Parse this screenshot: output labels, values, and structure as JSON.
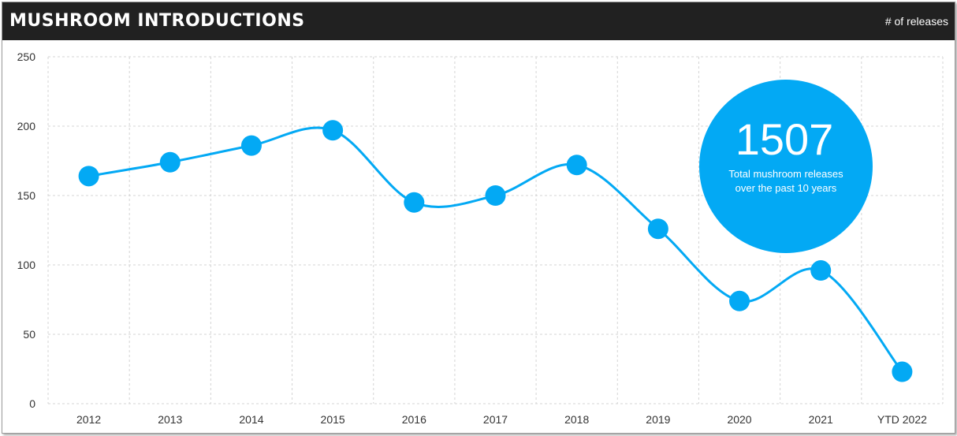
{
  "header": {
    "title": "MUSHROOM INTRODUCTIONS",
    "unit_label": "# of releases",
    "background": "#212121"
  },
  "callout": {
    "value": "1507",
    "caption_line1": "Total mushroom releases",
    "caption_line2": "over the past 10 years",
    "color": "#03A9F4"
  },
  "chart_data": {
    "type": "line",
    "title": "MUSHROOM INTRODUCTIONS",
    "ylabel": "# of releases",
    "xlabel": "",
    "smooth": true,
    "grid": true,
    "ylim": [
      0,
      250
    ],
    "yticks": [
      0,
      50,
      100,
      150,
      200,
      250
    ],
    "categories": [
      "2012",
      "2013",
      "2014",
      "2015",
      "2016",
      "2017",
      "2018",
      "2019",
      "2020",
      "2021",
      "YTD 2022"
    ],
    "series": [
      {
        "values": [
          164,
          174,
          186,
          197,
          145,
          150,
          172,
          126,
          74,
          96,
          23
        ],
        "color": "#03A9F4"
      }
    ]
  }
}
